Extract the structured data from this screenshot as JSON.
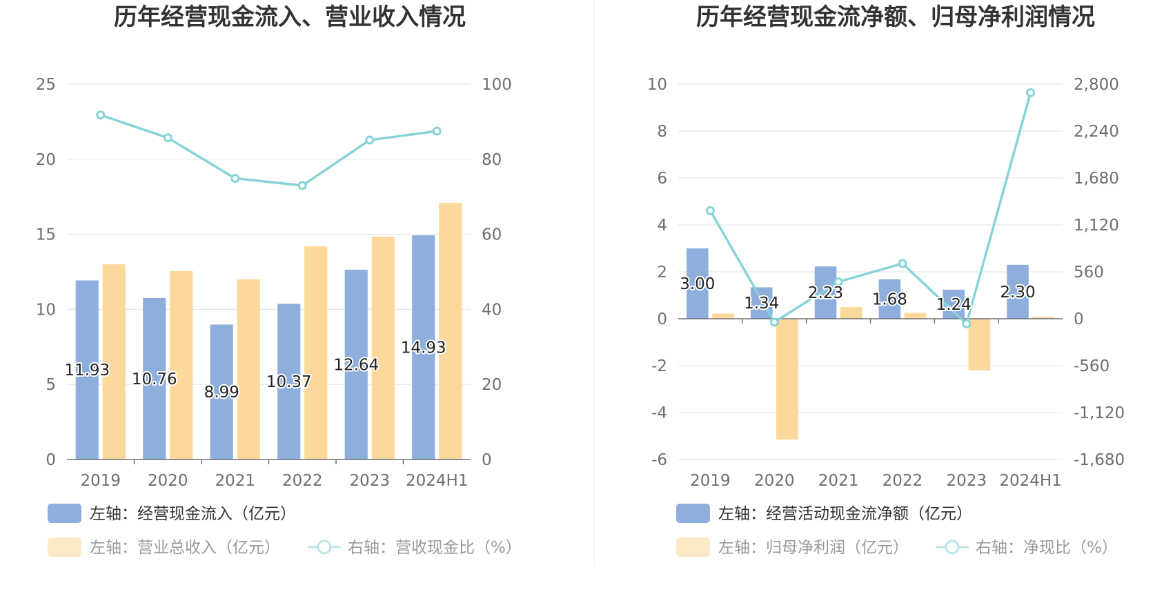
{
  "panels": [
    {
      "title": "历年经营现金流入、营业收入情况",
      "legend": [
        "左轴：经营现金流入（亿元）",
        "左轴：营业总收入（亿元）",
        "右轴：营收现金比（%）"
      ]
    },
    {
      "title": "历年经营现金流净额、归母净利润情况",
      "legend": [
        "左轴：经营活动现金流净额（亿元）",
        "左轴：归母净利润（亿元）",
        "右轴：净现比（%）"
      ]
    }
  ],
  "colors": {
    "bar_primary": "#8eaedc",
    "bar_secondary": "#fdd89b",
    "line": "#88d3d8",
    "legend_inactive_bar": "#fde9c6"
  },
  "chart_data": [
    {
      "type": "bar",
      "title": "历年经营现金流入、营业收入情况",
      "categories": [
        "2019",
        "2020",
        "2021",
        "2022",
        "2023",
        "2024H1"
      ],
      "ylim_left": [
        0,
        25
      ],
      "yticks_left": [
        "0",
        "5",
        "10",
        "15",
        "20",
        "25"
      ],
      "ylim_right": [
        0,
        100
      ],
      "yticks_right": [
        "0",
        "20",
        "40",
        "60",
        "80",
        "100"
      ],
      "series": [
        {
          "name": "左轴：经营现金流入（亿元）",
          "type": "bar",
          "axis": "left",
          "values": [
            11.93,
            10.76,
            8.99,
            10.37,
            12.64,
            14.93
          ],
          "labels": [
            "11.93",
            "10.76",
            "8.99",
            "10.37",
            "12.64",
            "14.93"
          ]
        },
        {
          "name": "左轴：营业总收入（亿元）",
          "type": "bar",
          "axis": "left",
          "values": [
            13.0,
            12.55,
            12.0,
            14.2,
            14.85,
            17.1
          ]
        },
        {
          "name": "右轴：营收现金比（%）",
          "type": "line",
          "axis": "right",
          "values": [
            91.8,
            85.7,
            74.9,
            73.0,
            85.1,
            87.5
          ]
        }
      ],
      "grid": true,
      "legend_position": "bottom-left"
    },
    {
      "type": "bar",
      "title": "历年经营现金流净额、归母净利润情况",
      "categories": [
        "2019",
        "2020",
        "2021",
        "2022",
        "2023",
        "2024H1"
      ],
      "ylim_left": [
        -6,
        10
      ],
      "yticks_left": [
        "-6",
        "-4",
        "-2",
        "0",
        "2",
        "4",
        "6",
        "8",
        "10"
      ],
      "ylim_right": [
        -1680,
        2800
      ],
      "yticks_right": [
        "-1,680",
        "-1,120",
        "-560",
        "0",
        "560",
        "1,120",
        "1,680",
        "2,240",
        "2,800"
      ],
      "series": [
        {
          "name": "左轴：经营活动现金流净额（亿元）",
          "type": "bar",
          "axis": "left",
          "values": [
            3.0,
            1.34,
            2.23,
            1.68,
            1.24,
            2.3
          ],
          "labels": [
            "3.00",
            "1.34",
            "2.23",
            "1.68",
            "1.24",
            "2.30"
          ]
        },
        {
          "name": "左轴：归母净利润（亿元）",
          "type": "bar",
          "axis": "left",
          "values": [
            0.22,
            -5.15,
            0.5,
            0.25,
            -2.2,
            0.08
          ]
        },
        {
          "name": "右轴：净现比（%）",
          "type": "line",
          "axis": "right",
          "values": [
            1290,
            -40,
            440,
            660,
            -60,
            2700
          ]
        }
      ],
      "grid": true,
      "legend_position": "bottom-left"
    }
  ]
}
